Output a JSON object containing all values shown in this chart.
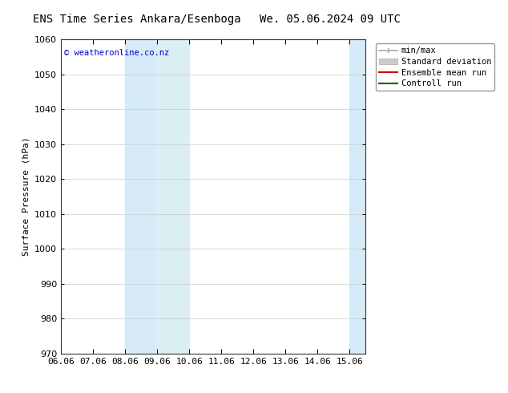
{
  "title_left": "ENS Time Series Ankara/Esenboga",
  "title_right": "We. 05.06.2024 09 UTC",
  "ylabel": "Surface Pressure (hPa)",
  "ylim": [
    970,
    1060
  ],
  "yticks": [
    970,
    980,
    990,
    1000,
    1010,
    1020,
    1030,
    1040,
    1050,
    1060
  ],
  "xtick_labels": [
    "06.06",
    "07.06",
    "08.06",
    "09.06",
    "10.06",
    "11.06",
    "12.06",
    "13.06",
    "14.06",
    "15.06"
  ],
  "x_positions": [
    0,
    1,
    2,
    3,
    4,
    5,
    6,
    7,
    8,
    9
  ],
  "x_min": 0,
  "x_max": 9.5,
  "shaded_bands": [
    {
      "x_start": 2.0,
      "x_end": 3.0,
      "color": "#d6eaf8"
    },
    {
      "x_start": 3.0,
      "x_end": 4.0,
      "color": "#daeef3"
    },
    {
      "x_start": 9.0,
      "x_end": 9.5,
      "color": "#d6eaf8"
    }
  ],
  "copyright_text": "© weatheronline.co.nz",
  "legend_labels": [
    "min/max",
    "Standard deviation",
    "Ensemble mean run",
    "Controll run"
  ],
  "legend_colors": [
    "#aaaaaa",
    "#cccccc",
    "#cc0000",
    "#006600"
  ],
  "bg_color": "#ffffff",
  "plot_bg_color": "#ffffff",
  "grid_color": "#cccccc",
  "title_fontsize": 10,
  "axis_label_fontsize": 8,
  "tick_fontsize": 8,
  "legend_fontsize": 7.5,
  "copyright_color": "#0000cc"
}
